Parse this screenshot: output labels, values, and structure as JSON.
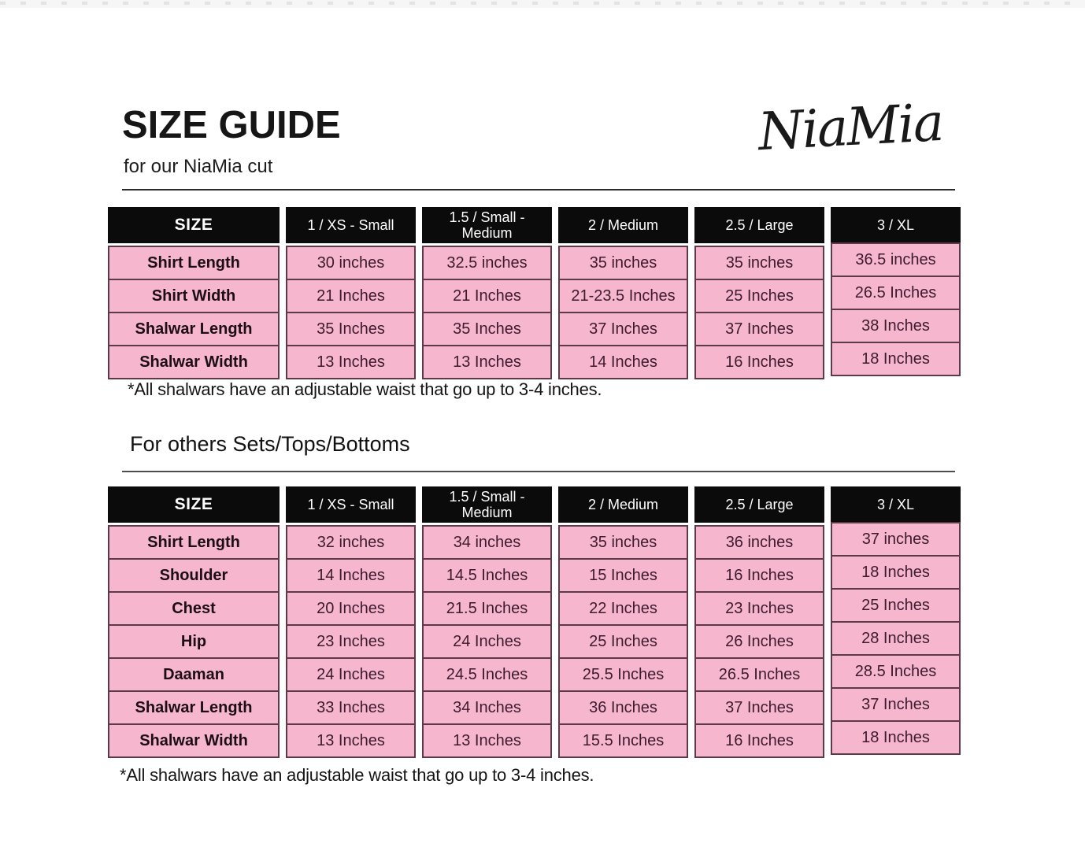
{
  "page": {
    "title": "SIZE GUIDE",
    "subtitle": "for our NiaMia cut",
    "brand": "NiaMia",
    "section2_heading": "For others Sets/Tops/Bottoms"
  },
  "colors": {
    "header_bg": "#0b0b0b",
    "header_text": "#ffffff",
    "cell_bg": "#f6b7ce",
    "cell_border": "#5d3a49",
    "value_text": "#3d1a2d"
  },
  "table1": {
    "columns": [
      "SIZE",
      "1 / XS - Small",
      "1.5 / Small - Medium",
      "2 / Medium",
      "2.5 / Large",
      "3 / XL"
    ],
    "rows": [
      {
        "label": "Shirt Length",
        "values": [
          "30 inches",
          "32.5 inches",
          "35 inches",
          "35 inches",
          "36.5 inches"
        ]
      },
      {
        "label": "Shirt Width",
        "values": [
          "21 Inches",
          "21 Inches",
          "21-23.5 Inches",
          "25 Inches",
          "26.5 Inches"
        ]
      },
      {
        "label": "Shalwar Length",
        "values": [
          "35 Inches",
          "35 Inches",
          "37 Inches",
          "37 Inches",
          "38 Inches"
        ]
      },
      {
        "label": "Shalwar Width",
        "values": [
          "13 Inches",
          "13 Inches",
          "14 Inches",
          "16 Inches",
          "18 Inches"
        ]
      }
    ],
    "footnote": "*All shalwars have an adjustable waist that go up to 3-4 inches."
  },
  "table2": {
    "columns": [
      "SIZE",
      "1 / XS - Small",
      "1.5 / Small - Medium",
      "2 / Medium",
      "2.5 / Large",
      "3 / XL"
    ],
    "rows": [
      {
        "label": "Shirt Length",
        "values": [
          "32 inches",
          "34 inches",
          "35 inches",
          "36 inches",
          "37 inches"
        ]
      },
      {
        "label": "Shoulder",
        "values": [
          "14 Inches",
          "14.5 Inches",
          "15 Inches",
          "16 Inches",
          "18 Inches"
        ]
      },
      {
        "label": "Chest",
        "values": [
          "20 Inches",
          "21.5 Inches",
          "22 Inches",
          "23 Inches",
          "25 Inches"
        ]
      },
      {
        "label": "Hip",
        "values": [
          "23 Inches",
          "24 Inches",
          "25 Inches",
          "26 Inches",
          "28 Inches"
        ]
      },
      {
        "label": "Daaman",
        "values": [
          "24 Inches",
          "24.5 Inches",
          "25.5 Inches",
          "26.5 Inches",
          "28.5 Inches"
        ]
      },
      {
        "label": "Shalwar Length",
        "values": [
          "33 Inches",
          "34 Inches",
          "36 Inches",
          "37 Inches",
          "37 Inches"
        ]
      },
      {
        "label": "Shalwar Width",
        "values": [
          "13 Inches",
          "13 Inches",
          "15.5 Inches",
          "16 Inches",
          "18 Inches"
        ]
      }
    ],
    "footnote": "*All shalwars have an adjustable waist that go up to 3-4 inches."
  }
}
